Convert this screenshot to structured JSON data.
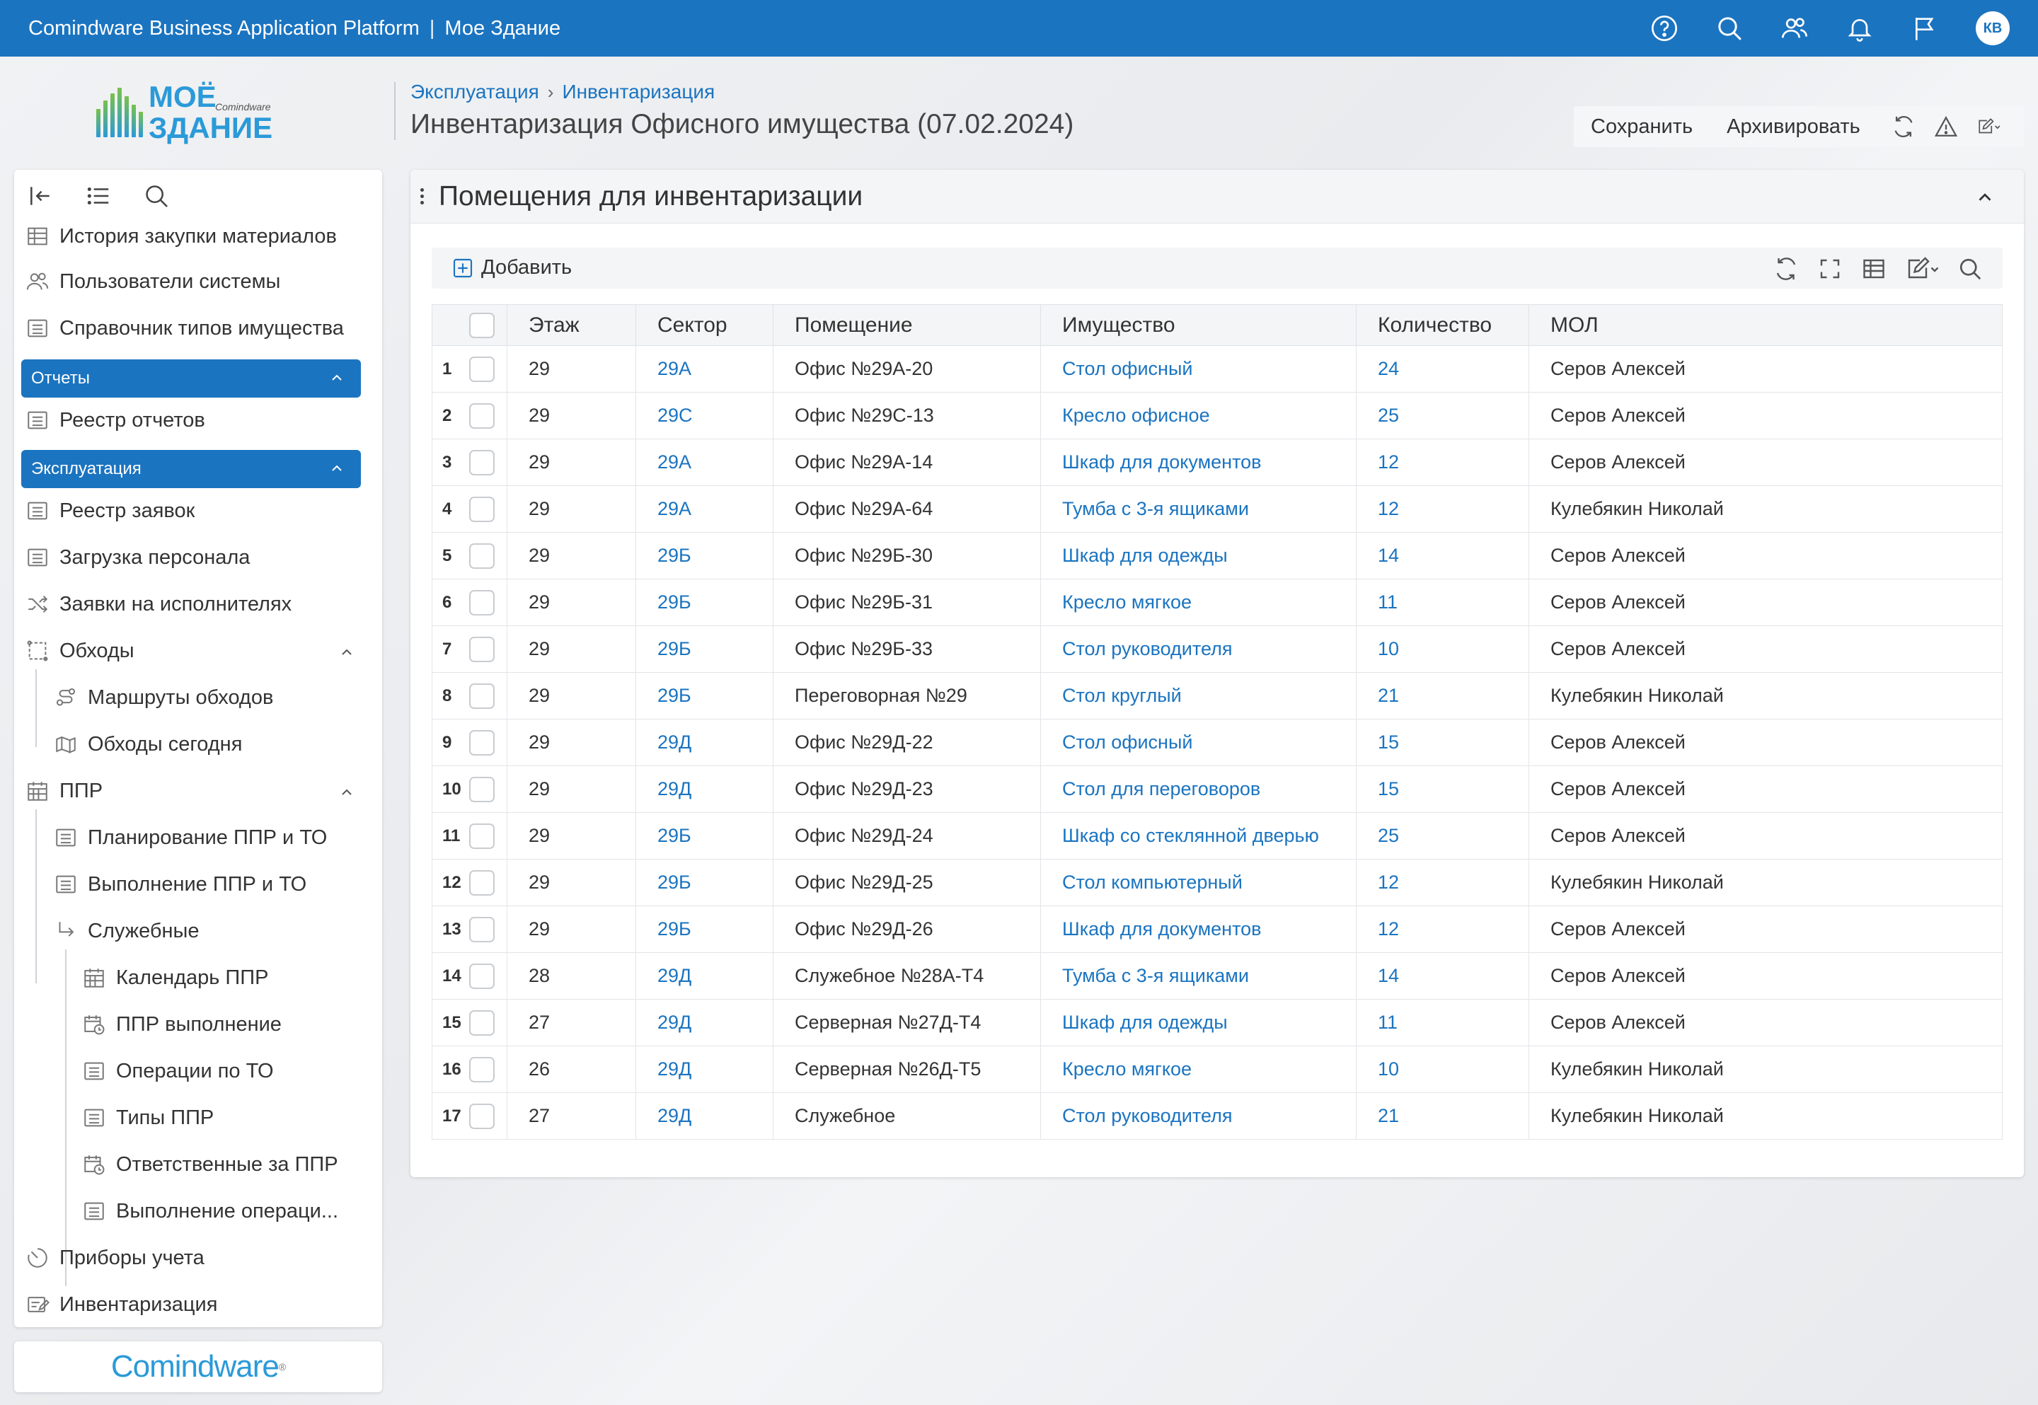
{
  "app": {
    "title": "Comindware Business Application Platform",
    "separator": "|",
    "workspace": "Мое Здание",
    "user_initials": "КВ"
  },
  "brand": {
    "logo_line1": "МОЁ",
    "logo_small": "Comindware",
    "logo_line2": "ЗДАНИЕ",
    "footer": "Comindware",
    "footer_mark": "®"
  },
  "breadcrumb": [
    "Эксплуатация",
    "Инвентаризация"
  ],
  "page": {
    "title": "Инвентаризация Офисного имущества (07.02.2024)"
  },
  "actions": {
    "save": "Сохранить",
    "archive": "Архивировать"
  },
  "sidebar": {
    "items_top": [
      {
        "label": "История закупки материалов",
        "icon": "table-icon"
      },
      {
        "label": "Пользователи системы",
        "icon": "users-icon"
      },
      {
        "label": "Справочник типов имущества",
        "icon": "list-icon"
      }
    ],
    "group_reports": "Отчеты",
    "reports_items": [
      {
        "label": "Реестр отчетов",
        "icon": "list-icon"
      }
    ],
    "group_ops": "Эксплуатация",
    "ops_items": [
      {
        "label": "Реестр заявок",
        "icon": "list-icon"
      },
      {
        "label": "Загрузка персонала",
        "icon": "list-icon"
      },
      {
        "label": "Заявки на исполнителях",
        "icon": "shuffle-icon"
      },
      {
        "label": "Обходы",
        "icon": "route-icon"
      },
      {
        "label": "Маршруты обходов",
        "icon": "route-icon"
      },
      {
        "label": "Обходы сегодня",
        "icon": "map-icon"
      },
      {
        "label": "ППР",
        "icon": "calendar-icon"
      },
      {
        "label": "Планирование ППР и ТО",
        "icon": "list-icon"
      },
      {
        "label": "Выполнение ППР и ТО",
        "icon": "list-icon"
      },
      {
        "label": "Служебные",
        "icon": "branch-icon"
      },
      {
        "label": "Календарь ППР",
        "icon": "calendar-icon"
      },
      {
        "label": "ППР выполнение",
        "icon": "calendar-clock-icon"
      },
      {
        "label": "Операции по ТО",
        "icon": "list-icon"
      },
      {
        "label": "Типы ППР",
        "icon": "list-icon"
      },
      {
        "label": "Ответственные за ППР",
        "icon": "calendar-clock-icon"
      },
      {
        "label": "Выполнение операци...",
        "icon": "list-icon"
      },
      {
        "label": "Приборы учета",
        "icon": "gauge-icon"
      },
      {
        "label": "Инвентаризация",
        "icon": "edit-list-icon"
      }
    ]
  },
  "panel": {
    "title": "Помещения для инвентаризации",
    "add_label": "Добавить"
  },
  "table": {
    "columns": [
      "Этаж",
      "Сектор",
      "Помещение",
      "Имущество",
      "Количество",
      "МОЛ"
    ],
    "rows": [
      {
        "n": "1",
        "floor": "29",
        "sector": "29А",
        "room": "Офис №29А-20",
        "asset": "Стол офисный",
        "qty": "24",
        "person": "Серов Алексей"
      },
      {
        "n": "2",
        "floor": "29",
        "sector": "29С",
        "room": "Офис №29С-13",
        "asset": "Кресло офисное",
        "qty": "25",
        "person": "Серов Алексей"
      },
      {
        "n": "3",
        "floor": "29",
        "sector": "29А",
        "room": "Офис №29А-14",
        "asset": "Шкаф для документов",
        "qty": "12",
        "person": "Серов Алексей"
      },
      {
        "n": "4",
        "floor": "29",
        "sector": "29А",
        "room": "Офис №29А-64",
        "asset": "Тумба с 3-я ящиками",
        "qty": "12",
        "person": "Кулебякин Николай"
      },
      {
        "n": "5",
        "floor": "29",
        "sector": "29Б",
        "room": "Офис №29Б-30",
        "asset": "Шкаф для одежды",
        "qty": "14",
        "person": "Серов Алексей"
      },
      {
        "n": "6",
        "floor": "29",
        "sector": "29Б",
        "room": "Офис №29Б-31",
        "asset": "Кресло мягкое",
        "qty": "11",
        "person": "Серов Алексей"
      },
      {
        "n": "7",
        "floor": "29",
        "sector": "29Б",
        "room": "Офис №29Б-33",
        "asset": "Стол руководителя",
        "qty": "10",
        "person": "Серов Алексей"
      },
      {
        "n": "8",
        "floor": "29",
        "sector": "29Б",
        "room": "Переговорная №29",
        "asset": "Стол круглый",
        "qty": "21",
        "person": "Кулебякин Николай"
      },
      {
        "n": "9",
        "floor": "29",
        "sector": "29Д",
        "room": "Офис №29Д-22",
        "asset": "Стол офисный",
        "qty": "15",
        "person": "Серов Алексей"
      },
      {
        "n": "10",
        "floor": "29",
        "sector": "29Д",
        "room": "Офис №29Д-23",
        "asset": "Стол для переговоров",
        "qty": "15",
        "person": "Серов Алексей"
      },
      {
        "n": "11",
        "floor": "29",
        "sector": "29Б",
        "room": "Офис №29Д-24",
        "asset": "Шкаф со стеклянной дверью",
        "qty": "25",
        "person": "Серов Алексей"
      },
      {
        "n": "12",
        "floor": "29",
        "sector": "29Б",
        "room": "Офис №29Д-25",
        "asset": "Стол компьютерный",
        "qty": "12",
        "person": "Кулебякин Николай"
      },
      {
        "n": "13",
        "floor": "29",
        "sector": "29Б",
        "room": "Офис №29Д-26",
        "asset": "Шкаф для документов",
        "qty": "12",
        "person": "Серов Алексей"
      },
      {
        "n": "14",
        "floor": "28",
        "sector": "29Д",
        "room": "Служебное №28А-Т4",
        "asset": "Тумба с 3-я ящиками",
        "qty": "14",
        "person": "Серов Алексей"
      },
      {
        "n": "15",
        "floor": "27",
        "sector": "29Д",
        "room": "Серверная №27Д-Т4",
        "asset": "Шкаф для одежды",
        "qty": "11",
        "person": "Серов Алексей"
      },
      {
        "n": "16",
        "floor": "26",
        "sector": "29Д",
        "room": "Серверная №26Д-Т5",
        "asset": "Кресло мягкое",
        "qty": "10",
        "person": "Кулебякин Николай"
      },
      {
        "n": "17",
        "floor": "27",
        "sector": "29Д",
        "room": "Служебное",
        "asset": "Стол руководителя",
        "qty": "21",
        "person": "Кулебякин Николай"
      }
    ]
  },
  "colors": {
    "primary": "#1b74c0",
    "link": "#1b74c0",
    "background": "#eef0f2"
  }
}
